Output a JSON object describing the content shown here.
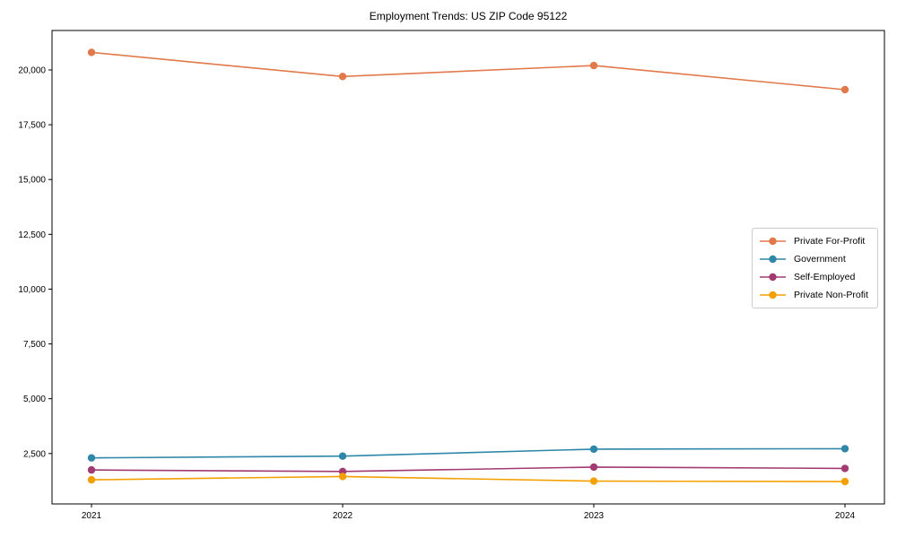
{
  "title": "Employment Trends: US ZIP Code 95122",
  "chart_data": {
    "type": "line",
    "categories": [
      "2021",
      "2022",
      "2023",
      "2024"
    ],
    "series": [
      {
        "name": "Private For-Profit",
        "color": "#E2794B",
        "values": [
          20800,
          19700,
          20200,
          19100
        ]
      },
      {
        "name": "Government",
        "color": "#2E86A8",
        "values": [
          2300,
          2380,
          2700,
          2720
        ]
      },
      {
        "name": "Self-Employed",
        "color": "#A23B72",
        "values": [
          1750,
          1680,
          1880,
          1820
        ]
      },
      {
        "name": "Private Non-Profit",
        "color": "#F3A002",
        "values": [
          1300,
          1450,
          1240,
          1220
        ]
      }
    ],
    "title": "Employment Trends: US ZIP Code 95122",
    "xlabel": "",
    "ylabel": "",
    "ylim": [
      200,
      21800
    ],
    "yticks": [
      2500,
      5000,
      7500,
      10000,
      12500,
      15000,
      17500,
      20000
    ],
    "ytick_labels": [
      "2,500",
      "5,000",
      "7,500",
      "10,000",
      "12,500",
      "15,000",
      "17,500",
      "20,000"
    ],
    "grid": false,
    "legend_position": "center right",
    "axis_color": "#000000",
    "legend_border_color": "#cccccc"
  }
}
